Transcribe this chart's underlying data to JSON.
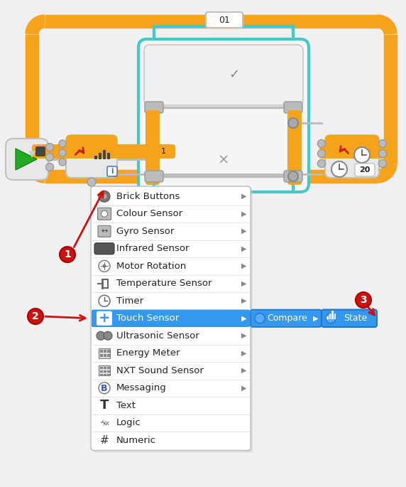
{
  "bg_color": "#f0f0f0",
  "orange": "#F5A31A",
  "cyan": "#45C8C8",
  "blue_menu": "#3399EE",
  "green_play": "#22AA22",
  "red_ann": "#CC1111",
  "gray_light": "#E8E8E8",
  "gray_med": "#C0C0C0",
  "gray_dark": "#888888",
  "gray_border": "#AAAAAA",
  "white": "#FFFFFF",
  "black": "#222222",
  "menu_bg": "#FFFFFF",
  "menu_border": "#BBBBBB",
  "menu_divider": "#DDDDDD",
  "menu_items": [
    "Brick Buttons",
    "Colour Sensor",
    "Gyro Sensor",
    "Infrared Sensor",
    "Motor Rotation",
    "Temperature Sensor",
    "Timer",
    "Touch Sensor",
    "Ultrasonic Sensor",
    "Energy Meter",
    "NXT Sound Sensor",
    "Messaging",
    "Text",
    "Logic",
    "Numeric"
  ],
  "menu_has_arrow": [
    true,
    true,
    true,
    true,
    true,
    true,
    true,
    true,
    true,
    true,
    true,
    true,
    false,
    false,
    false
  ],
  "highlighted_item": 7,
  "label_01": "01",
  "label_1": "1",
  "label_20": "20",
  "label_i": "i",
  "ann_labels": [
    "1",
    "2",
    "3"
  ],
  "fig_w": 5.72,
  "fig_h": 6.85,
  "dpi": 100
}
